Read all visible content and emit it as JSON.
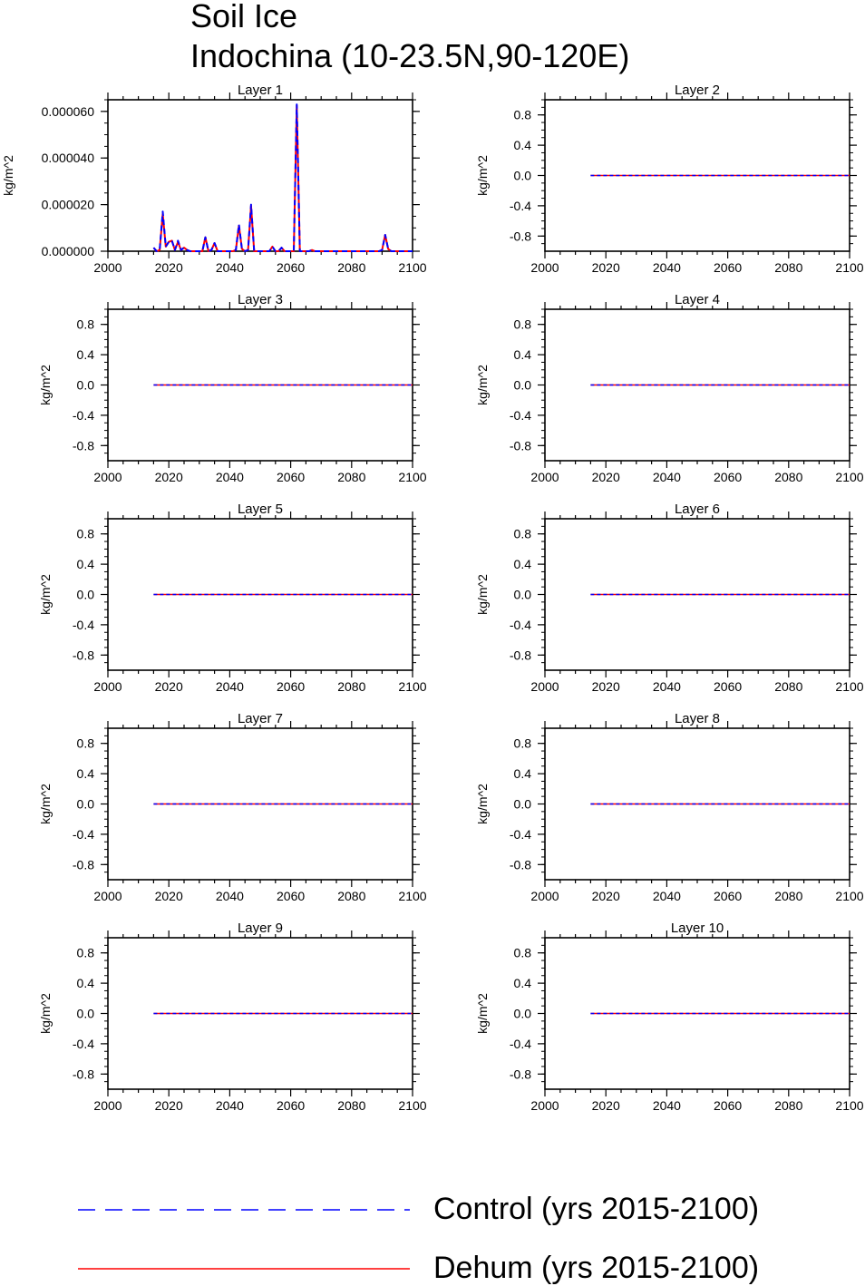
{
  "figure": {
    "title_line1": "Soil Ice",
    "title_line2": "Indochina (10-23.5N,90-120E)"
  },
  "legend": {
    "items": [
      {
        "label": "Control (yrs 2015-2100)",
        "color": "#0000ff",
        "style": "dashed"
      },
      {
        "label": "Dehum (yrs 2015-2100)",
        "color": "#ff0000",
        "style": "solid"
      }
    ]
  },
  "chart_data": [
    {
      "type": "line",
      "title": "Layer 1",
      "ylabel": "kg/m^2",
      "xlim": [
        2000,
        2100
      ],
      "ylim": [
        0,
        6.5e-05
      ],
      "xticks": [
        2000,
        2020,
        2040,
        2060,
        2080,
        2100
      ],
      "yticks": [
        0,
        2e-05,
        4e-05,
        6e-05
      ],
      "ytick_labels": [
        "0.000000",
        "0.000020",
        "0.000040",
        "0.000060"
      ],
      "x": [
        2015,
        2016,
        2017,
        2018,
        2019,
        2020,
        2021,
        2022,
        2023,
        2024,
        2025,
        2026,
        2027,
        2028,
        2029,
        2030,
        2031,
        2032,
        2033,
        2034,
        2035,
        2036,
        2037,
        2038,
        2039,
        2040,
        2041,
        2042,
        2043,
        2044,
        2045,
        2046,
        2047,
        2048,
        2049,
        2050,
        2051,
        2052,
        2053,
        2054,
        2055,
        2056,
        2057,
        2058,
        2059,
        2060,
        2061,
        2062,
        2063,
        2064,
        2065,
        2066,
        2067,
        2068,
        2069,
        2070,
        2071,
        2072,
        2073,
        2074,
        2075,
        2076,
        2077,
        2078,
        2079,
        2080,
        2081,
        2082,
        2083,
        2084,
        2085,
        2086,
        2087,
        2088,
        2089,
        2090,
        2091,
        2092,
        2093,
        2094,
        2095,
        2096,
        2097,
        2098,
        2099,
        2100
      ],
      "series": [
        {
          "name": "Control (yrs 2015-2100)",
          "values": [
            1.5e-06,
            0,
            5e-07,
            1.7e-05,
            2e-06,
            4e-06,
            4.5e-06,
            5e-07,
            4.5e-06,
            5e-07,
            1.5e-06,
            5e-07,
            0,
            0,
            0,
            0,
            0,
            6e-06,
            0,
            5e-07,
            3.5e-06,
            0,
            0,
            0,
            0,
            0,
            0,
            5e-07,
            1.15e-05,
            1e-06,
            0,
            5e-07,
            2e-05,
            0,
            0,
            0,
            0,
            0,
            0,
            2e-06,
            0,
            0,
            1.5e-06,
            0,
            0,
            0,
            0,
            6.3e-05,
            0,
            0,
            0,
            0,
            5e-07,
            0,
            0,
            0,
            0,
            0,
            0,
            0,
            0,
            0,
            0,
            0,
            0,
            0,
            0,
            0,
            0,
            0,
            0,
            0,
            0,
            0,
            0,
            5e-07,
            7e-06,
            1e-06,
            0,
            0,
            0,
            0,
            0,
            0,
            0,
            0
          ]
        },
        {
          "name": "Dehum (yrs 2015-2100)",
          "values": [
            1.5e-06,
            0,
            5e-07,
            1.6e-05,
            2e-06,
            4e-06,
            4.5e-06,
            5e-07,
            4e-06,
            5e-07,
            1.5e-06,
            5e-07,
            0,
            0,
            0,
            0,
            0,
            6e-06,
            0,
            5e-07,
            3.5e-06,
            0,
            0,
            0,
            0,
            0,
            0,
            5e-07,
            1.1e-05,
            1e-06,
            0,
            5e-07,
            1.95e-05,
            0,
            0,
            0,
            0,
            0,
            0,
            2e-06,
            0,
            0,
            1.5e-06,
            0,
            0,
            0,
            0,
            6.25e-05,
            0,
            0,
            0,
            0,
            5e-07,
            0,
            0,
            0,
            0,
            0,
            0,
            0,
            0,
            0,
            0,
            0,
            0,
            0,
            0,
            0,
            0,
            0,
            0,
            0,
            0,
            0,
            0,
            5e-07,
            7e-06,
            1e-06,
            0,
            0,
            0,
            0,
            0,
            0,
            0,
            0
          ]
        }
      ]
    },
    {
      "type": "line",
      "title": "Layer 2",
      "ylabel": "kg/m^2",
      "xlim": [
        2000,
        2100
      ],
      "ylim": [
        -1,
        1
      ],
      "xticks": [
        2000,
        2020,
        2040,
        2060,
        2080,
        2100
      ],
      "yticks": [
        0.8,
        0.4,
        0.0,
        -0.4,
        -0.8
      ],
      "ytick_labels": [
        "0.8",
        "0.4",
        "0.0",
        "-0.4",
        "-0.8"
      ],
      "x": [
        2015,
        2100
      ],
      "series": [
        {
          "name": "Control (yrs 2015-2100)",
          "values": [
            0,
            0
          ]
        },
        {
          "name": "Dehum (yrs 2015-2100)",
          "values": [
            0,
            0
          ]
        }
      ]
    },
    {
      "type": "line",
      "title": "Layer 3",
      "ylabel": "kg/m^2",
      "xlim": [
        2000,
        2100
      ],
      "ylim": [
        -1,
        1
      ],
      "xticks": [
        2000,
        2020,
        2040,
        2060,
        2080,
        2100
      ],
      "yticks": [
        0.8,
        0.4,
        0.0,
        -0.4,
        -0.8
      ],
      "ytick_labels": [
        "0.8",
        "0.4",
        "0.0",
        "-0.4",
        "-0.8"
      ],
      "x": [
        2015,
        2100
      ],
      "series": [
        {
          "name": "Control (yrs 2015-2100)",
          "values": [
            0,
            0
          ]
        },
        {
          "name": "Dehum (yrs 2015-2100)",
          "values": [
            0,
            0
          ]
        }
      ]
    },
    {
      "type": "line",
      "title": "Layer 4",
      "ylabel": "kg/m^2",
      "xlim": [
        2000,
        2100
      ],
      "ylim": [
        -1,
        1
      ],
      "xticks": [
        2000,
        2020,
        2040,
        2060,
        2080,
        2100
      ],
      "yticks": [
        0.8,
        0.4,
        0.0,
        -0.4,
        -0.8
      ],
      "ytick_labels": [
        "0.8",
        "0.4",
        "0.0",
        "-0.4",
        "-0.8"
      ],
      "x": [
        2015,
        2100
      ],
      "series": [
        {
          "name": "Control (yrs 2015-2100)",
          "values": [
            0,
            0
          ]
        },
        {
          "name": "Dehum (yrs 2015-2100)",
          "values": [
            0,
            0
          ]
        }
      ]
    },
    {
      "type": "line",
      "title": "Layer 5",
      "ylabel": "kg/m^2",
      "xlim": [
        2000,
        2100
      ],
      "ylim": [
        -1,
        1
      ],
      "xticks": [
        2000,
        2020,
        2040,
        2060,
        2080,
        2100
      ],
      "yticks": [
        0.8,
        0.4,
        0.0,
        -0.4,
        -0.8
      ],
      "ytick_labels": [
        "0.8",
        "0.4",
        "0.0",
        "-0.4",
        "-0.8"
      ],
      "x": [
        2015,
        2100
      ],
      "series": [
        {
          "name": "Control (yrs 2015-2100)",
          "values": [
            0,
            0
          ]
        },
        {
          "name": "Dehum (yrs 2015-2100)",
          "values": [
            0,
            0
          ]
        }
      ]
    },
    {
      "type": "line",
      "title": "Layer 6",
      "ylabel": "kg/m^2",
      "xlim": [
        2000,
        2100
      ],
      "ylim": [
        -1,
        1
      ],
      "xticks": [
        2000,
        2020,
        2040,
        2060,
        2080,
        2100
      ],
      "yticks": [
        0.8,
        0.4,
        0.0,
        -0.4,
        -0.8
      ],
      "ytick_labels": [
        "0.8",
        "0.4",
        "0.0",
        "-0.4",
        "-0.8"
      ],
      "x": [
        2015,
        2100
      ],
      "series": [
        {
          "name": "Control (yrs 2015-2100)",
          "values": [
            0,
            0
          ]
        },
        {
          "name": "Dehum (yrs 2015-2100)",
          "values": [
            0,
            0
          ]
        }
      ]
    },
    {
      "type": "line",
      "title": "Layer 7",
      "ylabel": "kg/m^2",
      "xlim": [
        2000,
        2100
      ],
      "ylim": [
        -1,
        1
      ],
      "xticks": [
        2000,
        2020,
        2040,
        2060,
        2080,
        2100
      ],
      "yticks": [
        0.8,
        0.4,
        0.0,
        -0.4,
        -0.8
      ],
      "ytick_labels": [
        "0.8",
        "0.4",
        "0.0",
        "-0.4",
        "-0.8"
      ],
      "x": [
        2015,
        2100
      ],
      "series": [
        {
          "name": "Control (yrs 2015-2100)",
          "values": [
            0,
            0
          ]
        },
        {
          "name": "Dehum (yrs 2015-2100)",
          "values": [
            0,
            0
          ]
        }
      ]
    },
    {
      "type": "line",
      "title": "Layer 8",
      "ylabel": "kg/m^2",
      "xlim": [
        2000,
        2100
      ],
      "ylim": [
        -1,
        1
      ],
      "xticks": [
        2000,
        2020,
        2040,
        2060,
        2080,
        2100
      ],
      "yticks": [
        0.8,
        0.4,
        0.0,
        -0.4,
        -0.8
      ],
      "ytick_labels": [
        "0.8",
        "0.4",
        "0.0",
        "-0.4",
        "-0.8"
      ],
      "x": [
        2015,
        2100
      ],
      "series": [
        {
          "name": "Control (yrs 2015-2100)",
          "values": [
            0,
            0
          ]
        },
        {
          "name": "Dehum (yrs 2015-2100)",
          "values": [
            0,
            0
          ]
        }
      ]
    },
    {
      "type": "line",
      "title": "Layer 9",
      "ylabel": "kg/m^2",
      "xlim": [
        2000,
        2100
      ],
      "ylim": [
        -1,
        1
      ],
      "xticks": [
        2000,
        2020,
        2040,
        2060,
        2080,
        2100
      ],
      "yticks": [
        0.8,
        0.4,
        0.0,
        -0.4,
        -0.8
      ],
      "ytick_labels": [
        "0.8",
        "0.4",
        "0.0",
        "-0.4",
        "-0.8"
      ],
      "x": [
        2015,
        2100
      ],
      "series": [
        {
          "name": "Control (yrs 2015-2100)",
          "values": [
            0,
            0
          ]
        },
        {
          "name": "Dehum (yrs 2015-2100)",
          "values": [
            0,
            0
          ]
        }
      ]
    },
    {
      "type": "line",
      "title": "Layer 10",
      "ylabel": "kg/m^2",
      "xlim": [
        2000,
        2100
      ],
      "ylim": [
        -1,
        1
      ],
      "xticks": [
        2000,
        2020,
        2040,
        2060,
        2080,
        2100
      ],
      "yticks": [
        0.8,
        0.4,
        0.0,
        -0.4,
        -0.8
      ],
      "ytick_labels": [
        "0.8",
        "0.4",
        "0.0",
        "-0.4",
        "-0.8"
      ],
      "x": [
        2015,
        2100
      ],
      "series": [
        {
          "name": "Control (yrs 2015-2100)",
          "values": [
            0,
            0
          ]
        },
        {
          "name": "Dehum (yrs 2015-2100)",
          "values": [
            0,
            0
          ]
        }
      ]
    }
  ]
}
